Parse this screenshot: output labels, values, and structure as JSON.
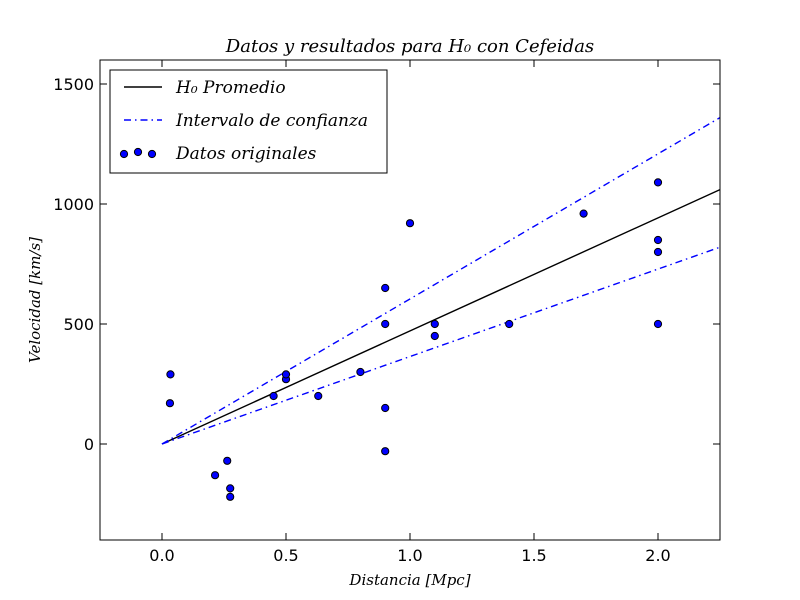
{
  "chart_data": {
    "type": "scatter",
    "title": "Datos y resultados para H₀ con Cefeidas",
    "xlabel": "Distancia [Mpc]",
    "ylabel": "Velocidad [km/s]",
    "xlim": [
      -0.25,
      2.25
    ],
    "ylim": [
      -400,
      1600
    ],
    "xticks": [
      0.0,
      0.5,
      1.0,
      1.5,
      2.0
    ],
    "xtick_labels": [
      "0.0",
      "0.5",
      "1.0",
      "1.5",
      "2.0"
    ],
    "yticks": [
      0,
      500,
      1000,
      1500
    ],
    "ytick_labels": [
      "0",
      "500",
      "1000",
      "1500"
    ],
    "legend_position": "top-left",
    "series": [
      {
        "name": "H₀ Promedio",
        "kind": "line",
        "style": "solid",
        "color": "#000000",
        "x": [
          0.0,
          2.25
        ],
        "y": [
          0,
          1060
        ]
      },
      {
        "name": "Intervalo de confianza",
        "kind": "line",
        "style": "dashdot",
        "color": "#0000ff",
        "x": [
          0.0,
          2.25
        ],
        "y": [
          0,
          1360
        ]
      },
      {
        "name": "",
        "kind": "line",
        "style": "dashdot",
        "color": "#0000ff",
        "x": [
          0.0,
          2.25
        ],
        "y": [
          0,
          820
        ]
      },
      {
        "name": "Datos originales",
        "kind": "scatter",
        "color": "#0000ff",
        "x": [
          0.032,
          0.034,
          0.214,
          0.263,
          0.275,
          0.275,
          0.45,
          0.5,
          0.5,
          0.63,
          0.8,
          0.9,
          0.9,
          0.9,
          0.9,
          1.0,
          1.1,
          1.1,
          1.4,
          1.7,
          2.0,
          2.0,
          2.0,
          2.0
        ],
        "y": [
          170,
          290,
          -130,
          -70,
          -185,
          -220,
          200,
          270,
          290,
          200,
          300,
          -30,
          650,
          150,
          500,
          920,
          500,
          450,
          500,
          960,
          500,
          850,
          800,
          1090
        ]
      }
    ]
  }
}
